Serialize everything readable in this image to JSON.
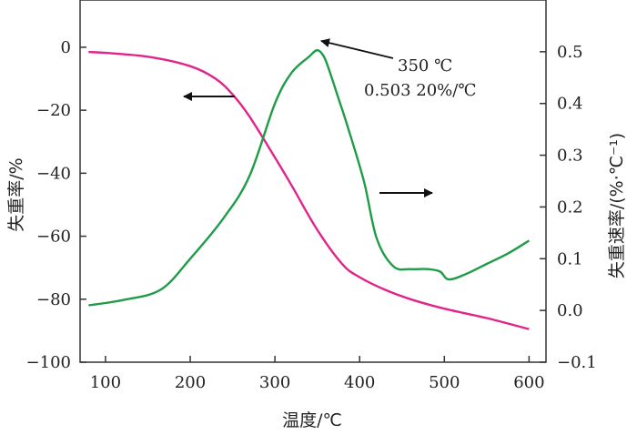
{
  "chart_data": {
    "type": "line",
    "xlabel": "温度/℃",
    "ylabel_left": "失重率/%",
    "ylabel_right": "失重速率/(%·℃⁻¹)",
    "x_ticks": [
      "100",
      "200",
      "300",
      "400",
      "500",
      "600"
    ],
    "x_tick_values": [
      100,
      200,
      300,
      400,
      500,
      600
    ],
    "xlim": [
      70,
      620
    ],
    "y_left_ticks": [
      "0",
      "−20",
      "−40",
      "−60",
      "−80",
      "−100"
    ],
    "y_left_tick_values": [
      0,
      -20,
      -40,
      -60,
      -80,
      -100
    ],
    "ylim_left": [
      -100,
      15
    ],
    "y_right_ticks": [
      "0.5",
      "0.4",
      "0.3",
      "0.2",
      "0.1",
      "0.0",
      "−0.1"
    ],
    "y_right_tick_values": [
      0.5,
      0.4,
      0.3,
      0.2,
      0.1,
      0.0,
      -0.1
    ],
    "ylim_right": [
      -0.1,
      0.6
    ],
    "series": [
      {
        "axis": "left",
        "color": "#e0248c",
        "x": [
          80,
          100,
          150,
          200,
          230,
          250,
          270,
          300,
          320,
          350,
          380,
          400,
          430,
          460,
          500,
          550,
          600
        ],
        "y": [
          -1.5,
          -1.8,
          -3,
          -6,
          -10,
          -15,
          -22,
          -35,
          -44,
          -58,
          -69,
          -73,
          -77,
          -80,
          -83,
          -86,
          -89.5
        ]
      },
      {
        "axis": "right",
        "color": "#1e9c48",
        "x": [
          80,
          120,
          165,
          200,
          240,
          270,
          300,
          320,
          340,
          350,
          358,
          365,
          375,
          385,
          405,
          420,
          440,
          460,
          480,
          495,
          505,
          525,
          550,
          575,
          600
        ],
        "y": [
          0.01,
          0.02,
          0.04,
          0.1,
          0.18,
          0.26,
          0.4,
          0.46,
          0.49,
          0.503,
          0.49,
          0.46,
          0.41,
          0.36,
          0.25,
          0.14,
          0.085,
          0.08,
          0.08,
          0.075,
          0.06,
          0.07,
          0.09,
          0.11,
          0.135
        ]
      }
    ],
    "annotations": {
      "peak_temp": "350 ℃",
      "peak_rate": "0.503 20%/℃",
      "peak_x": 352,
      "peak_y_right": 0.503
    }
  },
  "colors": {
    "mass_loss_line": "#e0248c",
    "rate_line": "#1e9c48",
    "axis": "#333333"
  }
}
